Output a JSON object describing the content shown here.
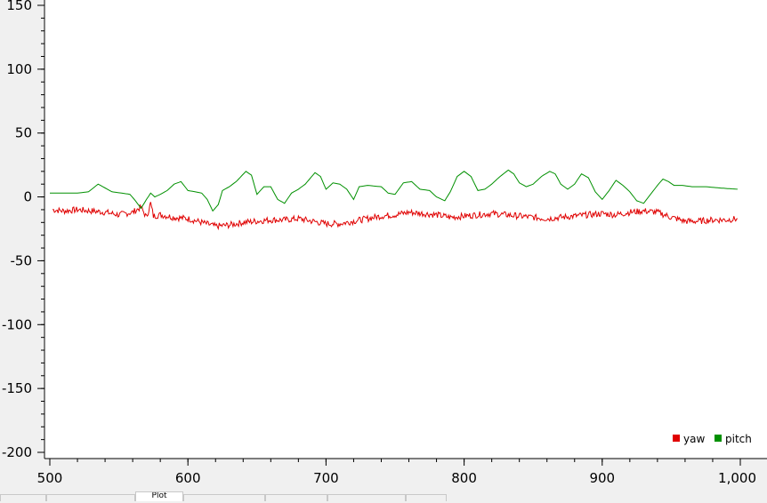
{
  "chart_data": {
    "type": "line",
    "title": "",
    "xlabel": "",
    "ylabel": "",
    "xlim": [
      500,
      1000
    ],
    "ylim": [
      -200,
      150
    ],
    "x_ticks": [
      500,
      600,
      700,
      800,
      900,
      1000
    ],
    "x_tick_labels": [
      "500",
      "600",
      "700",
      "800",
      "900",
      "1,000"
    ],
    "y_ticks": [
      150,
      100,
      50,
      0,
      -50,
      -100,
      -150,
      -200
    ],
    "y_tick_labels": [
      "150",
      "100",
      "50",
      "0",
      "-50",
      "-100",
      "-150",
      "-200"
    ],
    "grid": false,
    "legend_position": "bottom-right",
    "series": [
      {
        "name": "yaw",
        "color": "#e00000",
        "points": [
          [
            502,
            -10
          ],
          [
            510,
            -11
          ],
          [
            520,
            -10
          ],
          [
            530,
            -11
          ],
          [
            540,
            -12
          ],
          [
            550,
            -14
          ],
          [
            560,
            -12
          ],
          [
            566,
            -8
          ],
          [
            570,
            -16
          ],
          [
            573,
            -5
          ],
          [
            575,
            -15
          ],
          [
            580,
            -14
          ],
          [
            590,
            -16
          ],
          [
            600,
            -17
          ],
          [
            610,
            -20
          ],
          [
            620,
            -23
          ],
          [
            630,
            -22
          ],
          [
            640,
            -20
          ],
          [
            650,
            -19
          ],
          [
            660,
            -18
          ],
          [
            670,
            -18
          ],
          [
            680,
            -17
          ],
          [
            690,
            -19
          ],
          [
            700,
            -21
          ],
          [
            710,
            -21
          ],
          [
            720,
            -19
          ],
          [
            730,
            -17
          ],
          [
            740,
            -15
          ],
          [
            750,
            -14
          ],
          [
            760,
            -12
          ],
          [
            770,
            -13
          ],
          [
            780,
            -14
          ],
          [
            790,
            -16
          ],
          [
            800,
            -15
          ],
          [
            810,
            -14
          ],
          [
            820,
            -13
          ],
          [
            830,
            -14
          ],
          [
            840,
            -15
          ],
          [
            850,
            -16
          ],
          [
            860,
            -17
          ],
          [
            870,
            -16
          ],
          [
            880,
            -15
          ],
          [
            890,
            -14
          ],
          [
            900,
            -13
          ],
          [
            910,
            -14
          ],
          [
            920,
            -12
          ],
          [
            930,
            -11
          ],
          [
            940,
            -12
          ],
          [
            950,
            -16
          ],
          [
            960,
            -19
          ],
          [
            970,
            -19
          ],
          [
            980,
            -18
          ],
          [
            990,
            -18
          ],
          [
            998,
            -17
          ]
        ]
      },
      {
        "name": "pitch",
        "color": "#009000",
        "points": [
          [
            500,
            3
          ],
          [
            520,
            3
          ],
          [
            528,
            4
          ],
          [
            535,
            10
          ],
          [
            540,
            7
          ],
          [
            545,
            4
          ],
          [
            552,
            3
          ],
          [
            558,
            2
          ],
          [
            562,
            -3
          ],
          [
            566,
            -9
          ],
          [
            570,
            -2
          ],
          [
            573,
            3
          ],
          [
            576,
            0
          ],
          [
            580,
            2
          ],
          [
            585,
            5
          ],
          [
            590,
            10
          ],
          [
            595,
            12
          ],
          [
            600,
            5
          ],
          [
            605,
            4
          ],
          [
            610,
            3
          ],
          [
            614,
            -2
          ],
          [
            618,
            -11
          ],
          [
            622,
            -6
          ],
          [
            625,
            5
          ],
          [
            630,
            8
          ],
          [
            635,
            12
          ],
          [
            642,
            20
          ],
          [
            646,
            17
          ],
          [
            650,
            2
          ],
          [
            655,
            8
          ],
          [
            660,
            8
          ],
          [
            665,
            -2
          ],
          [
            670,
            -5
          ],
          [
            675,
            3
          ],
          [
            680,
            6
          ],
          [
            685,
            10
          ],
          [
            692,
            19
          ],
          [
            696,
            16
          ],
          [
            700,
            6
          ],
          [
            705,
            11
          ],
          [
            710,
            10
          ],
          [
            715,
            6
          ],
          [
            720,
            -2
          ],
          [
            724,
            8
          ],
          [
            730,
            9
          ],
          [
            740,
            8
          ],
          [
            745,
            3
          ],
          [
            750,
            2
          ],
          [
            756,
            11
          ],
          [
            762,
            12
          ],
          [
            768,
            6
          ],
          [
            775,
            5
          ],
          [
            780,
            0
          ],
          [
            786,
            -3
          ],
          [
            790,
            4
          ],
          [
            795,
            16
          ],
          [
            800,
            20
          ],
          [
            805,
            16
          ],
          [
            810,
            5
          ],
          [
            815,
            6
          ],
          [
            820,
            10
          ],
          [
            826,
            16
          ],
          [
            832,
            21
          ],
          [
            836,
            18
          ],
          [
            840,
            11
          ],
          [
            845,
            8
          ],
          [
            850,
            10
          ],
          [
            856,
            16
          ],
          [
            862,
            20
          ],
          [
            866,
            18
          ],
          [
            870,
            10
          ],
          [
            875,
            6
          ],
          [
            880,
            10
          ],
          [
            885,
            18
          ],
          [
            890,
            15
          ],
          [
            895,
            4
          ],
          [
            900,
            -2
          ],
          [
            905,
            5
          ],
          [
            910,
            13
          ],
          [
            915,
            9
          ],
          [
            920,
            4
          ],
          [
            925,
            -3
          ],
          [
            930,
            -5
          ],
          [
            935,
            2
          ],
          [
            940,
            9
          ],
          [
            944,
            14
          ],
          [
            948,
            12
          ],
          [
            952,
            9
          ],
          [
            958,
            9
          ],
          [
            965,
            8
          ],
          [
            975,
            8
          ],
          [
            985,
            7
          ],
          [
            998,
            6
          ]
        ]
      }
    ]
  },
  "tabs": [
    {
      "label": ""
    },
    {
      "label": ""
    },
    {
      "label": "Plot"
    },
    {
      "label": ""
    },
    {
      "label": ""
    },
    {
      "label": ""
    },
    {
      "label": ""
    }
  ]
}
